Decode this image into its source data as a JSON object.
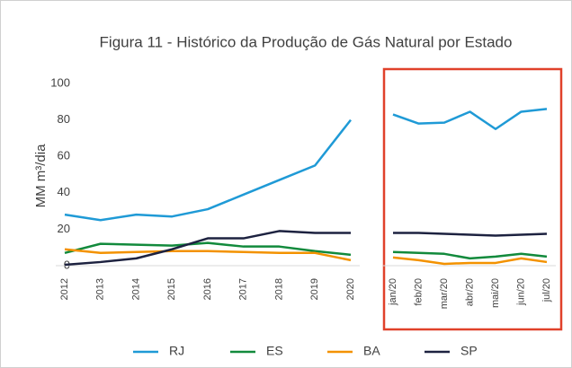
{
  "chart_data": {
    "type": "line",
    "title": "Figura 11 - Histórico da Produção de Gás Natural por Estado",
    "y_label": "MM m³/dia",
    "categories": [
      "2012",
      "2013",
      "2014",
      "2015",
      "2016",
      "2017",
      "2018",
      "2019",
      "2020",
      null,
      "jan/20",
      "feb/20",
      "mar/20",
      "abr/20",
      "mai/20",
      "jun/20",
      "jul/20"
    ],
    "ylim": [
      0,
      100
    ],
    "yticks": [
      0,
      20,
      40,
      60,
      80,
      100
    ],
    "series": [
      {
        "name": "RJ",
        "color": "#1f9ad6",
        "values": [
          28,
          25,
          28,
          27,
          31,
          39,
          47,
          55,
          80,
          null,
          83,
          78,
          78.5,
          84.5,
          75,
          84.5,
          86
        ]
      },
      {
        "name": "ES",
        "color": "#128a3c",
        "values": [
          7,
          12,
          11.5,
          11,
          12.5,
          10.5,
          10.5,
          8,
          6,
          null,
          7.5,
          7,
          6.5,
          4,
          5,
          6.5,
          5
        ]
      },
      {
        "name": "BA",
        "color": "#f39200",
        "values": [
          9,
          7,
          7.5,
          8,
          8,
          7.5,
          7,
          7,
          3,
          null,
          4.5,
          3,
          1,
          1.5,
          1.5,
          4,
          2
        ]
      },
      {
        "name": "SP",
        "color": "#1d2240",
        "values": [
          0.5,
          2,
          4,
          9,
          15,
          15,
          19,
          18,
          18,
          null,
          18,
          18,
          17.5,
          17,
          16.5,
          17,
          17.5
        ]
      }
    ]
  }
}
